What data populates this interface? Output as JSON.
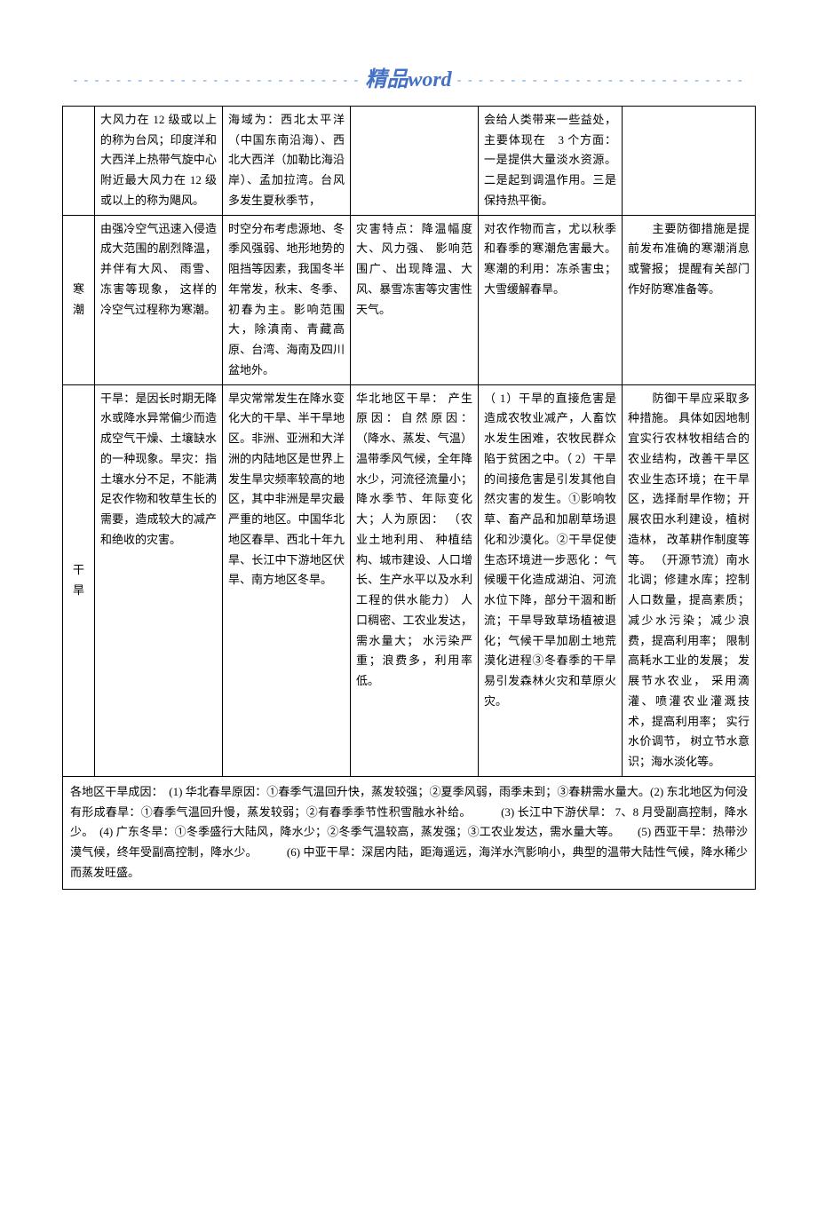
{
  "colors": {
    "text": "#000000",
    "border": "#000000",
    "brand": "#4472c4",
    "dash": "#5b9bd5",
    "background": "#ffffff"
  },
  "typography": {
    "body_font": "SimSun",
    "body_size_pt": 10,
    "brand_font": "KaiTi",
    "brand_size_pt": 18,
    "line_height": 1.7
  },
  "header": {
    "dash_left": "- - - - - - - - - - - - - - - - - - - - - - - - - - -",
    "brand_cn": "精品",
    "brand_en": "word",
    "dash_right": "- - - - - - - - - - - - - - - - - - - - - - - - - - -"
  },
  "table": {
    "rows": [
      {
        "label": "",
        "c1": "大风力在 12 级或以上的称为台风；印度洋和大西洋上热带气旋中心附近最大风力在 12 级或以上的称为飓风。",
        "c2": "海域为：西北太平洋（中国东南沿海）、西北大西洋（加勒比海沿岸）、孟加拉湾。台风多发生夏秋季节，",
        "c3": "",
        "c4": "会给人类带来一些益处，主要体现在　3 个方面：一是提供大量淡水资源。二是起到调温作用。三是保持热平衡。",
        "c5": ""
      },
      {
        "label": "寒潮",
        "c1": "由强冷空气迅速入侵造成大范围的剧烈降温，并伴有大风、 雨雪、冻害等现象， 这样的冷空气过程称为寒潮。",
        "c2": "时空分布考虑源地、冬季风强弱、地形地势的阻挡等因素，我国冬半年常发，秋末、冬季、初春为主。影响范围大，除滇南、青藏高原、台湾、海南及四川盆地外。",
        "c3": "灾害特点：降温幅度大、风力强、 影响范围广、出现降温、大风、暴雪冻害等灾害性天气。",
        "c4": "对农作物而言，尤以秋季和春季的寒潮危害最大。寒潮的利用：冻杀害虫；大雪缓解春旱。",
        "c5": "　　主要防御措施是提前发布准确的寒潮消息或警报； 提醒有关部门作好防寒准备等。"
      },
      {
        "label": "干旱",
        "c1": "干旱：是因长时期无降水或降水异常偏少而造成空气干燥、土壤缺水的一种现象。旱灾：指土壤水分不足，不能满足农作物和牧草生长的需要，造成较大的减产和绝收的灾害。",
        "c2": "旱灾常常发生在降水变化大的干旱、半干旱地区。非洲、亚洲和大洋洲的内陆地区是世界上发生旱灾频率较高的地区，其中非洲是旱灾最严重的地区。中国华北地区春旱、西北十年九旱、长江中下游地区伏旱、南方地区冬旱。",
        "c3": "华北地区干旱： 产生原因：自然原因： （降水、蒸发、气温）温带季风气候，全年降水少，河流径流量小； 降水季节、年际变化大；人为原因： （农业土地利用、 种植结构、城市建设、人口增长、生产水平以及水利工程的供水能力） 人口稠密、工农业发达，需水量大； 水污染严重；浪费多，利用率低。",
        "c4": "（ 1）干旱的直接危害是造成农牧业减产，人畜饮水发生困难，农牧民群众陷于贫困之中。（ 2）干旱的间接危害是引发其他自然灾害的发生。①影响牧草、畜产品和加剧草场退化和沙漠化。②干旱促使生态环境进一步恶化  ：气候暖干化造成湖泊、河流水位下降，部分干涸和断流；干旱导致草场植被退化；气候干旱加剧土地荒漠化进程③冬春季的干旱易引发森林火灾和草原火灾。",
        "c5": "　　防御干旱应采取多种措施。 具体如因地制宜实行农林牧相结合的农业结构，改善干旱区农业生态环境；在干旱区，选择耐旱作物；开展农田水利建设，植树造林， 改革耕作制度等等。 （开源节流）南水北调；修建水库；控制人口数量，提高素质； 减少水污染；减少浪费，提高利用率； 限制高耗水工业的发展； 发展节水农业， 采用滴灌、喷灌农业灌溉技术，提高利用率； 实行水价调节， 树立节水意识；海水淡化等。"
      }
    ],
    "footer": "各地区干旱成因：　(1) 华北春旱原因：①春季气温回升快，蒸发较强；②夏季风弱，雨季未到；③春耕需水量大。(2) 东北地区为何没有形成春旱：①春季气温回升慢，蒸发较弱；②有春季季节性积雪融水补给。　　　(3) 长江中下游伏旱： 7、8 月受副高控制，降水少。　(4) 广东冬旱：①冬季盛行大陆风，降水少；②冬季气温较高，蒸发强；③工农业发达，需水量大等。　　(5) 西亚干旱：热带沙漠气候，终年受副高控制，降水少。　　　(6) 中亚干旱：深居内陆，距海遥远，海洋水汽影响小，典型的温带大陆性气候，降水稀少而蒸发旺盛。"
  }
}
